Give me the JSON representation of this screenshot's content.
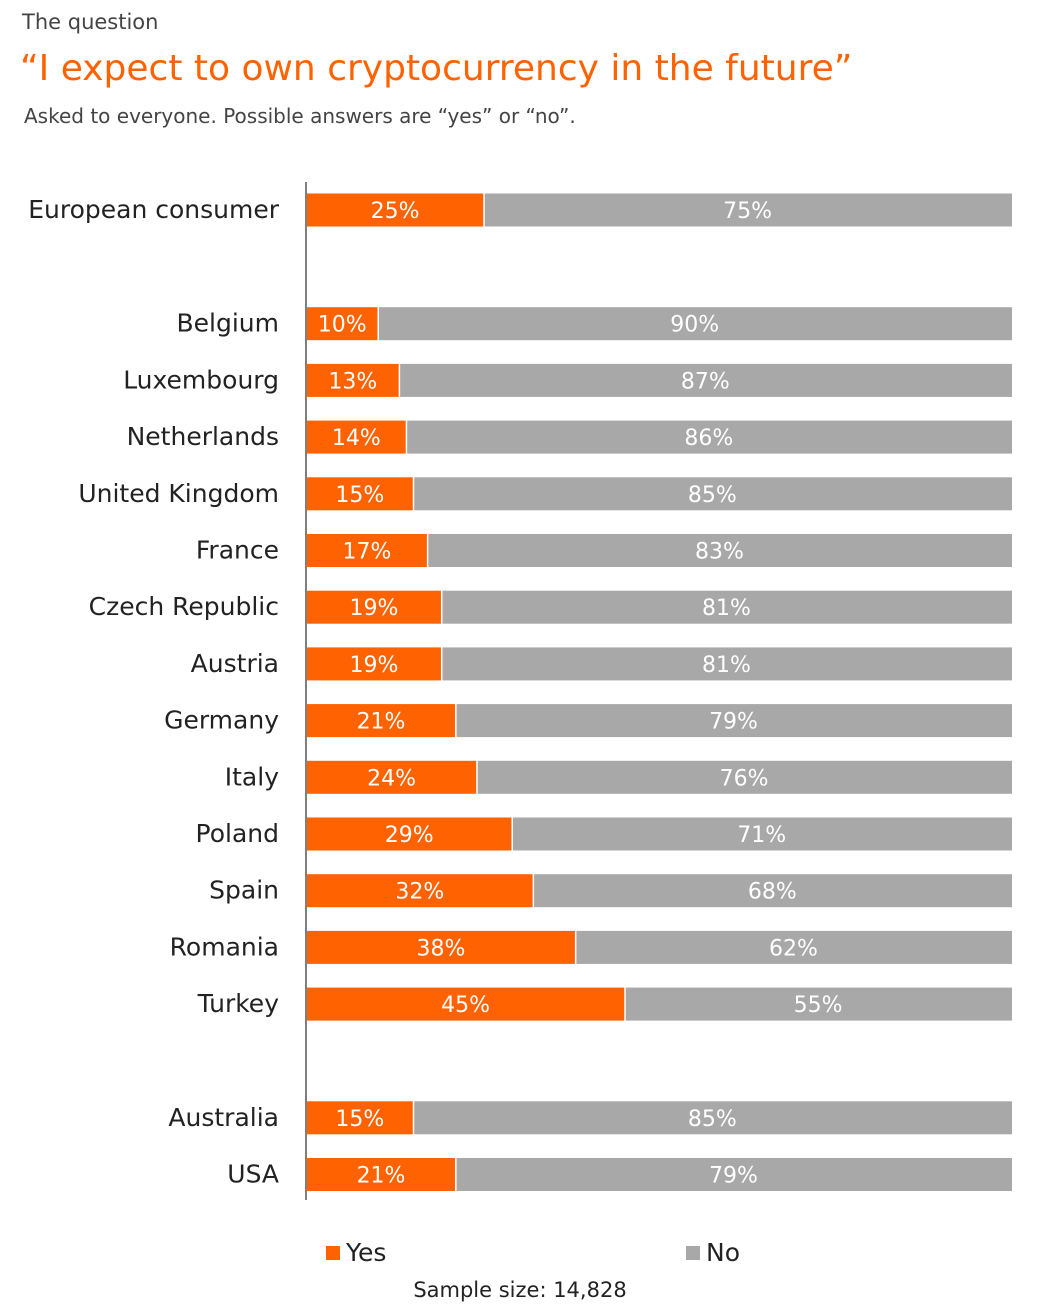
{
  "header": {
    "kicker": "The question",
    "title": "“I expect to own cryptocurrency in the future”",
    "subtitle": "Asked to everyone. Possible answers are “yes” or “no”."
  },
  "colors": {
    "yes": "#ff6200",
    "no": "#a8a8a8"
  },
  "chart_data": {
    "type": "bar",
    "orientation": "horizontal",
    "stacked": true,
    "percent_stacked": true,
    "categories": [
      "European consumer",
      "Belgium",
      "Luxembourg",
      "Netherlands",
      "United Kingdom",
      "France",
      "Czech Republic",
      "Austria",
      "Germany",
      "Italy",
      "Poland",
      "Spain",
      "Romania",
      "Turkey",
      "Australia",
      "USA"
    ],
    "groups": [
      [
        "European consumer"
      ],
      [
        "Belgium",
        "Luxembourg",
        "Netherlands",
        "United Kingdom",
        "France",
        "Czech Republic",
        "Austria",
        "Germany",
        "Italy",
        "Poland",
        "Spain",
        "Romania",
        "Turkey"
      ],
      [
        "Australia",
        "USA"
      ]
    ],
    "series": [
      {
        "name": "Yes",
        "values": [
          25,
          10,
          13,
          14,
          15,
          17,
          19,
          19,
          21,
          24,
          29,
          32,
          38,
          45,
          15,
          21
        ]
      },
      {
        "name": "No",
        "values": [
          75,
          90,
          87,
          86,
          85,
          83,
          81,
          81,
          79,
          76,
          71,
          68,
          62,
          55,
          85,
          79
        ]
      }
    ],
    "value_suffix": "%",
    "xlim": [
      0,
      100
    ],
    "grid": false,
    "legend": "bottom"
  },
  "legend": {
    "yes": "Yes",
    "no": "No"
  },
  "footer": {
    "sample": "Sample size: 14,828"
  }
}
